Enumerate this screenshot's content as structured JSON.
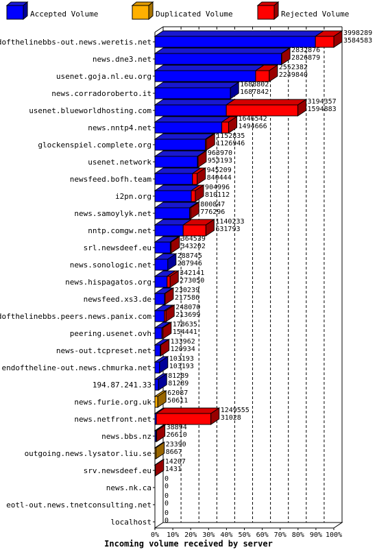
{
  "chart_data": {
    "type": "bar",
    "orientation": "horizontal",
    "stacked": true,
    "xlabel": "Incoming volume received by server",
    "xlim": [
      0,
      100
    ],
    "x_unit": "%",
    "x_ticks": [
      "0%",
      "10%",
      "20%",
      "30%",
      "40%",
      "50%",
      "60%",
      "70%",
      "80%",
      "90%",
      "100%"
    ],
    "legend_position": "top",
    "grid": "vertical dashed",
    "series": [
      {
        "name": "Accepted Volume",
        "color": "#0000ff"
      },
      {
        "name": "Duplicated Volume",
        "color": "#ffb000"
      },
      {
        "name": "Rejected Volume",
        "color": "#ff0000"
      }
    ],
    "categories": [
      "endofthelinebbs-out.news.weretis.net",
      "news.dne3.net",
      "usenet.goja.nl.eu.org",
      "news.corradoroberto.it",
      "usenet.blueworldhosting.com",
      "news.nntp4.net",
      "glockenspiel.complete.org",
      "usenet.network",
      "newsfeed.bofh.team",
      "i2pn.org",
      "news.samoylyk.net",
      "nntp.comgw.net",
      "srl.newsdeef.eu",
      "news.sonologic.net",
      "news.hispagatos.org",
      "newsfeed.xs3.de",
      "endofthelinebbs.peers.news.panix.com",
      "peering.usenet.ovh",
      "news-out.tcpreset.net",
      "endoftheline-out.news.chmurka.net",
      "194.87.241.33",
      "news.furie.org.uk",
      "news.netfront.net",
      "news.bbs.nz",
      "outgoing.news.lysator.liu.se",
      "srv.newsdeef.eu",
      "news.nk.ca",
      "eotl-out.news.tnetconsulting.net",
      "localhost"
    ],
    "total_labels": [
      "3998289",
      "2832876",
      "2552382",
      "1688802",
      "3194357",
      "1646542",
      "1152835",
      "963970",
      "945209",
      "904996",
      "800847",
      "1140233",
      "364539",
      "288745",
      "342141",
      "230239",
      "248070",
      "178635",
      "133962",
      "103193",
      "81289",
      "62087",
      "1249555",
      "38894",
      "23390",
      "14207",
      "0",
      "0",
      "0"
    ],
    "accepted_labels": [
      "3584583",
      "2826879",
      "2249840",
      "1687842",
      "1594883",
      "1494666",
      "1126946",
      "953193",
      "840444",
      "810112",
      "776296",
      "631793",
      "343202",
      "287946",
      "273050",
      "217586",
      "213699",
      "154441",
      "120934",
      "103193",
      "81289",
      "50611",
      "31028",
      "26610",
      "8667",
      "1431",
      "0",
      "0",
      "0"
    ],
    "accepted_pct": [
      89.7,
      70.7,
      56.3,
      42.2,
      39.9,
      37.4,
      28.2,
      23.8,
      21.0,
      20.3,
      19.4,
      15.8,
      8.6,
      7.2,
      6.8,
      5.4,
      5.3,
      3.9,
      3.0,
      2.6,
      2.0,
      0,
      0.8,
      0.7,
      0,
      0,
      0,
      0,
      0
    ],
    "duplicated_pct": [
      0,
      0,
      0,
      0,
      0,
      0,
      0,
      0,
      0,
      0,
      0,
      0,
      0,
      0,
      0,
      0,
      0,
      0,
      0,
      0,
      0,
      1.6,
      0,
      0,
      0.6,
      0,
      0,
      0,
      0
    ],
    "rejected_pct": [
      10.3,
      0.2,
      7.6,
      0.0,
      40.0,
      3.8,
      0.6,
      0.3,
      2.6,
      2.3,
      0.6,
      12.7,
      0.5,
      0.0,
      1.7,
      0.3,
      0.9,
      0.6,
      0.3,
      0,
      0,
      0,
      30.5,
      0.3,
      0,
      0.3,
      0,
      0,
      0
    ]
  }
}
